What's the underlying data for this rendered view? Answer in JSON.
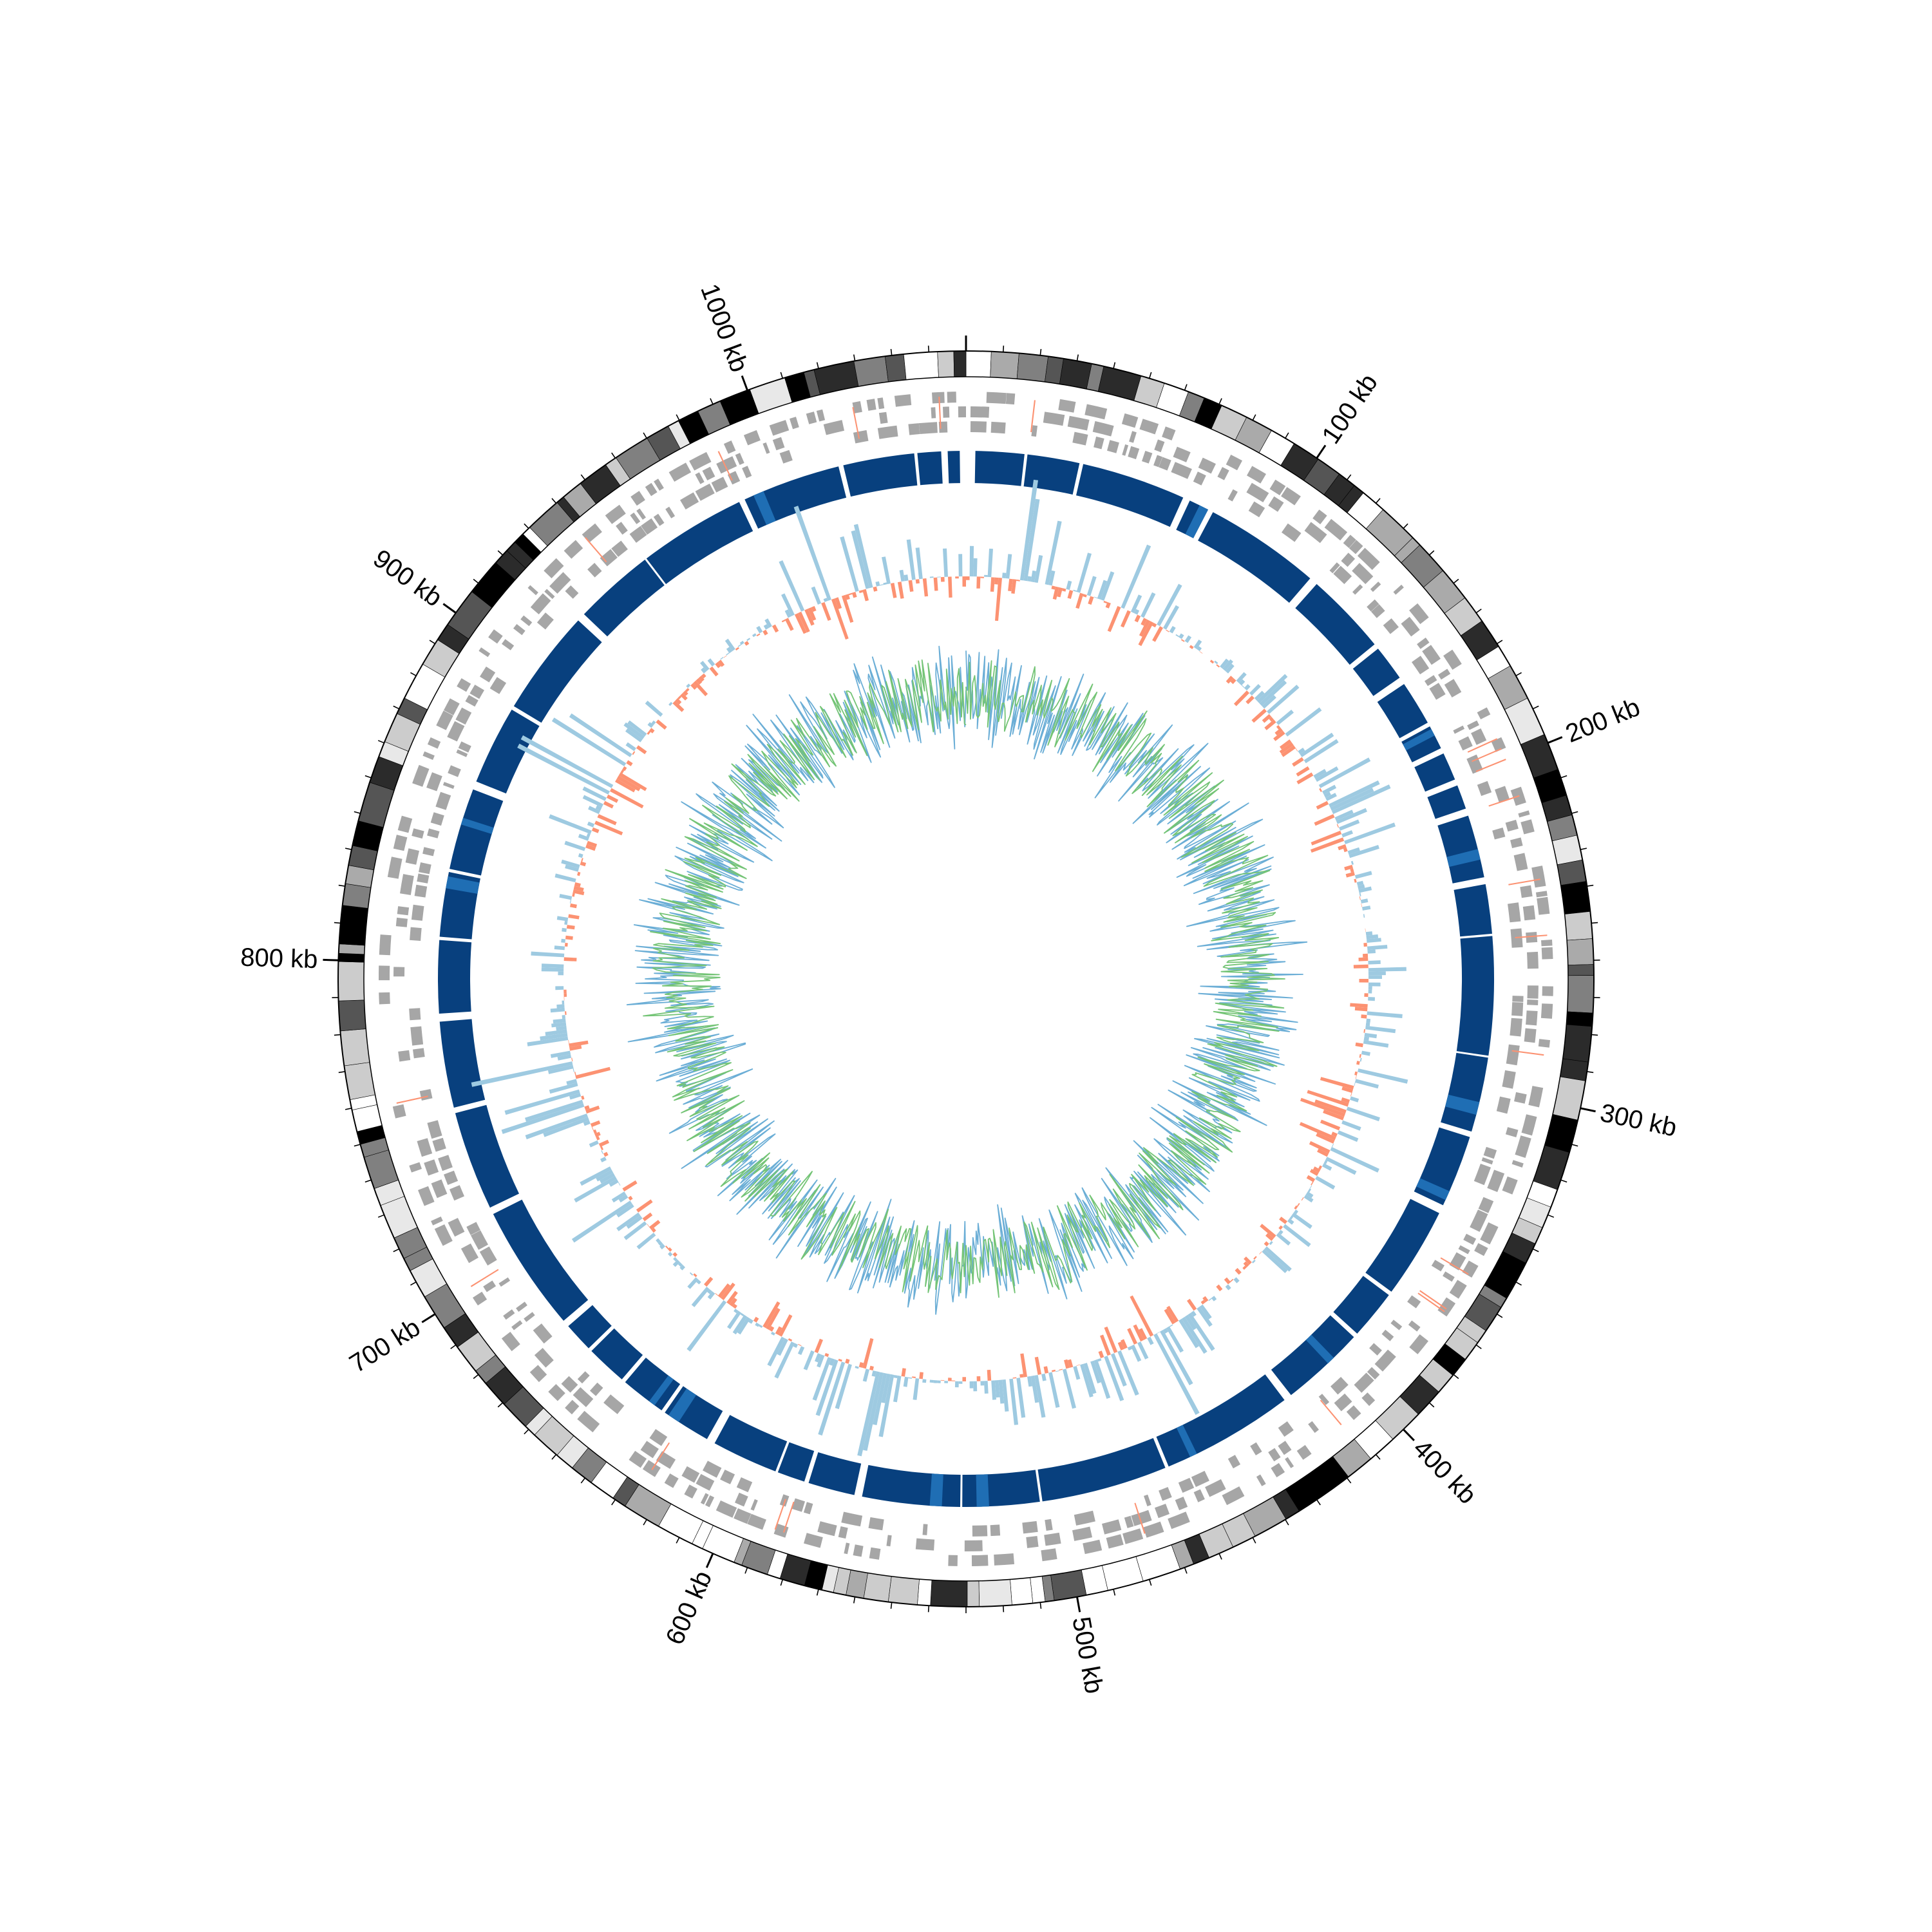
{
  "chart_data": {
    "type": "circular-genome",
    "genome_length_kb": 1060,
    "tick_labels": [
      {
        "position_kb": 100,
        "label": "100 kb"
      },
      {
        "position_kb": 200,
        "label": "200 kb"
      },
      {
        "position_kb": 300,
        "label": "300 kb"
      },
      {
        "position_kb": 400,
        "label": "400 kb"
      },
      {
        "position_kb": 500,
        "label": "500 kb"
      },
      {
        "position_kb": 600,
        "label": "600 kb"
      },
      {
        "position_kb": 700,
        "label": "700 kb"
      },
      {
        "position_kb": 800,
        "label": "800 kb"
      },
      {
        "position_kb": 900,
        "label": "900 kb"
      },
      {
        "position_kb": 1000,
        "label": "1000 kb"
      }
    ],
    "tracks": [
      {
        "id": "ideogram-bands",
        "kind": "grayscale-bands",
        "shades": [
          "#000000",
          "#2b2b2b",
          "#555555",
          "#808080",
          "#aaaaaa",
          "#cccccc",
          "#e8e8e8",
          "#ffffff"
        ]
      },
      {
        "id": "features-plus-strand",
        "kind": "tiles",
        "color": "#a6a6a6"
      },
      {
        "id": "features-minus-strand",
        "kind": "tiles",
        "color": "#a6a6a6"
      },
      {
        "id": "syntenic-blocks",
        "kind": "blocks",
        "color": "#08407e",
        "accent": "#1f6eb4"
      },
      {
        "id": "histogram-outward",
        "kind": "histogram",
        "color": "#9ecae1"
      },
      {
        "id": "histogram-inward",
        "kind": "histogram",
        "color": "#fc9272"
      },
      {
        "id": "line-blue",
        "kind": "line",
        "color": "#6baed6"
      },
      {
        "id": "line-green",
        "kind": "line",
        "color": "#74c476"
      }
    ],
    "colors": {
      "background": "#ffffff",
      "ticks": "#000000",
      "blocks": "#08407e",
      "blocks_accent": "#1f6eb4",
      "tiles": "#a6a6a6",
      "hist_blue": "#9ecae1",
      "hist_red": "#fc9272",
      "line_blue": "#6baed6",
      "line_green": "#74c476"
    }
  }
}
